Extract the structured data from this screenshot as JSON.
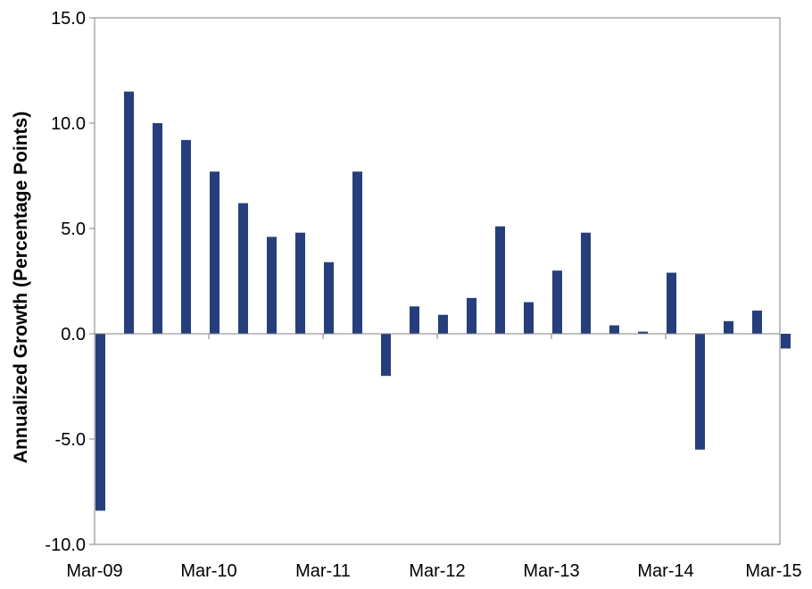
{
  "chart_data": {
    "type": "bar",
    "title": "",
    "xlabel": "",
    "ylabel": "Annualized Growth (Percentage Points)",
    "ylim": [
      -10,
      15
    ],
    "yticks": [
      -10,
      -5,
      0,
      5,
      10,
      15
    ],
    "ytick_labels": [
      "-10.0",
      "-5.0",
      "0.0",
      "5.0",
      "10.0",
      "15.0"
    ],
    "xtick_labels": [
      "Mar-09",
      "Mar-10",
      "Mar-11",
      "Mar-12",
      "Mar-13",
      "Mar-14",
      "Mar-15"
    ],
    "grid": false,
    "legend": "none",
    "bar_color": "#263e7c",
    "categories": [
      "Mar-09",
      "Jun-09",
      "Sep-09",
      "Dec-09",
      "Mar-10",
      "Jun-10",
      "Sep-10",
      "Dec-10",
      "Mar-11",
      "Jun-11",
      "Sep-11",
      "Dec-11",
      "Mar-12",
      "Jun-12",
      "Sep-12",
      "Dec-12",
      "Mar-13",
      "Jun-13",
      "Sep-13",
      "Dec-13",
      "Mar-14",
      "Jun-14",
      "Sep-14",
      "Dec-14",
      "Mar-15"
    ],
    "values": [
      -8.4,
      11.5,
      10.0,
      9.2,
      7.7,
      6.2,
      4.6,
      4.8,
      3.4,
      7.7,
      -2.0,
      1.3,
      0.9,
      1.7,
      5.1,
      1.5,
      3.0,
      4.8,
      0.4,
      0.1,
      2.9,
      -5.5,
      0.6,
      1.1,
      -0.7
    ]
  }
}
